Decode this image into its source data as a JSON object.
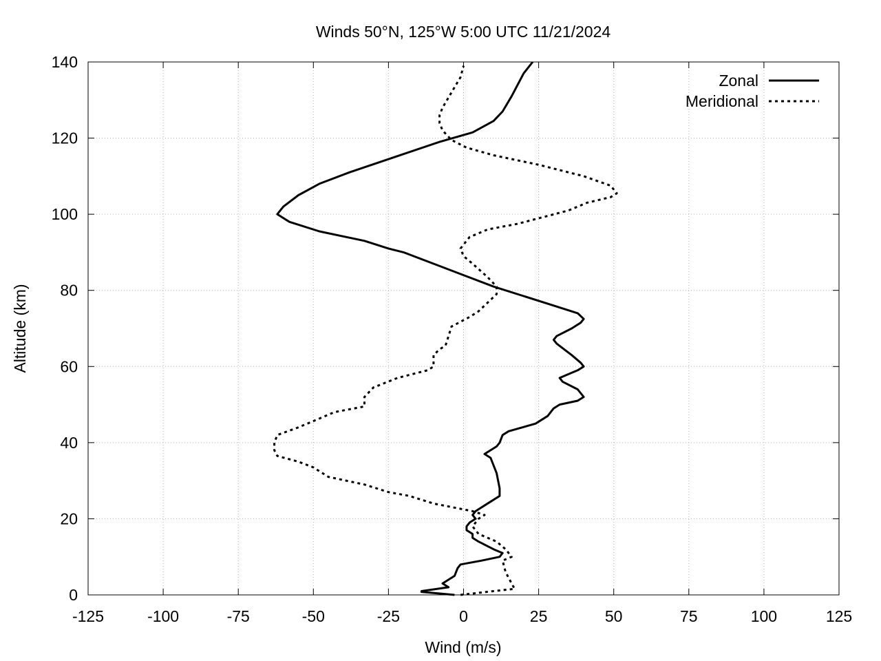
{
  "chart_data": {
    "type": "line",
    "title": "Winds 50°N, 125°W 5:00 UTC 11/21/2024",
    "xlabel": "Wind (m/s)",
    "ylabel": "Altitude (km)",
    "xlim": [
      -125,
      125
    ],
    "ylim": [
      0,
      140
    ],
    "xticks": [
      "-125",
      "-100",
      "-75",
      "-50",
      "-25",
      "0",
      "25",
      "50",
      "75",
      "100",
      "125"
    ],
    "yticks": [
      "0",
      "20",
      "40",
      "60",
      "80",
      "100",
      "120",
      "140"
    ],
    "grid": true,
    "legend_position": "top-right",
    "series": [
      {
        "name": "Zonal",
        "style": "solid",
        "points": [
          [
            -3,
            0
          ],
          [
            -14,
            0.8
          ],
          [
            -14,
            1
          ],
          [
            -5,
            2
          ],
          [
            -7,
            3
          ],
          [
            -3,
            5
          ],
          [
            -2,
            7
          ],
          [
            -1,
            8
          ],
          [
            6,
            9
          ],
          [
            12,
            10
          ],
          [
            13,
            11
          ],
          [
            10,
            12
          ],
          [
            5,
            14
          ],
          [
            3,
            15
          ],
          [
            3,
            16
          ],
          [
            1,
            17
          ],
          [
            1,
            18
          ],
          [
            2,
            19
          ],
          [
            4,
            20
          ],
          [
            3,
            21
          ],
          [
            4,
            22
          ],
          [
            8,
            24
          ],
          [
            12,
            26
          ],
          [
            12,
            28
          ],
          [
            11,
            32
          ],
          [
            9,
            36
          ],
          [
            7,
            37
          ],
          [
            11,
            39
          ],
          [
            12,
            40
          ],
          [
            13,
            42
          ],
          [
            15,
            43
          ],
          [
            24,
            45
          ],
          [
            28,
            47
          ],
          [
            30,
            49
          ],
          [
            32,
            50
          ],
          [
            38,
            51
          ],
          [
            40,
            52
          ],
          [
            38,
            54
          ],
          [
            33,
            56
          ],
          [
            32,
            57
          ],
          [
            35,
            58
          ],
          [
            38,
            59
          ],
          [
            40,
            60
          ],
          [
            39,
            61
          ],
          [
            36,
            63
          ],
          [
            31,
            66
          ],
          [
            30,
            67
          ],
          [
            31,
            68
          ],
          [
            36,
            70
          ],
          [
            39,
            71.5
          ],
          [
            40,
            72.5
          ],
          [
            38,
            74
          ],
          [
            30,
            76
          ],
          [
            20,
            78.5
          ],
          [
            10,
            81
          ],
          [
            0,
            84
          ],
          [
            -10,
            87
          ],
          [
            -20,
            90
          ],
          [
            -25,
            91
          ],
          [
            -33,
            93
          ],
          [
            -48,
            95.5
          ],
          [
            -58,
            98
          ],
          [
            -62,
            100
          ],
          [
            -60,
            102
          ],
          [
            -55,
            105
          ],
          [
            -48,
            108
          ],
          [
            -38,
            111
          ],
          [
            -23,
            115
          ],
          [
            -8,
            119
          ],
          [
            3,
            121.5
          ],
          [
            10,
            124.5
          ],
          [
            13,
            127
          ],
          [
            16,
            131
          ],
          [
            20,
            137
          ],
          [
            23,
            140
          ]
        ]
      },
      {
        "name": "Meridional",
        "style": "dashed",
        "points": [
          [
            -1,
            0
          ],
          [
            10,
            1
          ],
          [
            17,
            1.6
          ],
          [
            16,
            3
          ],
          [
            14,
            6
          ],
          [
            13,
            9
          ],
          [
            16,
            10
          ],
          [
            14,
            12
          ],
          [
            11,
            14
          ],
          [
            5,
            16
          ],
          [
            3,
            18
          ],
          [
            5,
            20
          ],
          [
            7,
            21
          ],
          [
            3,
            22
          ],
          [
            -10,
            24
          ],
          [
            -18,
            26
          ],
          [
            -25,
            27
          ],
          [
            -33,
            29
          ],
          [
            -45,
            31
          ],
          [
            -50,
            33.5
          ],
          [
            -55,
            35
          ],
          [
            -62,
            36.5
          ],
          [
            -63,
            38
          ],
          [
            -63,
            40
          ],
          [
            -62,
            42
          ],
          [
            -55,
            44
          ],
          [
            -49,
            46
          ],
          [
            -43,
            48
          ],
          [
            -33,
            49.5
          ],
          [
            -33,
            52
          ],
          [
            -30,
            54.5
          ],
          [
            -22,
            57
          ],
          [
            -12,
            59
          ],
          [
            -10,
            60
          ],
          [
            -10,
            63
          ],
          [
            -8,
            64.5
          ],
          [
            -6,
            65.5
          ],
          [
            -5,
            68
          ],
          [
            -4,
            70.5
          ],
          [
            2,
            73
          ],
          [
            5,
            74.5
          ],
          [
            11,
            79
          ],
          [
            11,
            81
          ],
          [
            8,
            83.5
          ],
          [
            3,
            87
          ],
          [
            0,
            89
          ],
          [
            -1,
            91
          ],
          [
            2,
            94
          ],
          [
            8,
            96
          ],
          [
            18,
            97.5
          ],
          [
            35,
            101
          ],
          [
            41,
            103
          ],
          [
            49,
            104.5
          ],
          [
            51,
            105.5
          ],
          [
            49,
            107.5
          ],
          [
            40,
            110
          ],
          [
            25,
            113
          ],
          [
            10,
            115.5
          ],
          [
            1,
            117.5
          ],
          [
            -4,
            119.5
          ],
          [
            -7,
            122
          ],
          [
            -8,
            124
          ],
          [
            -8,
            126
          ],
          [
            -7,
            128
          ],
          [
            -4,
            132
          ],
          [
            -1,
            136
          ],
          [
            0,
            139
          ]
        ]
      }
    ]
  }
}
